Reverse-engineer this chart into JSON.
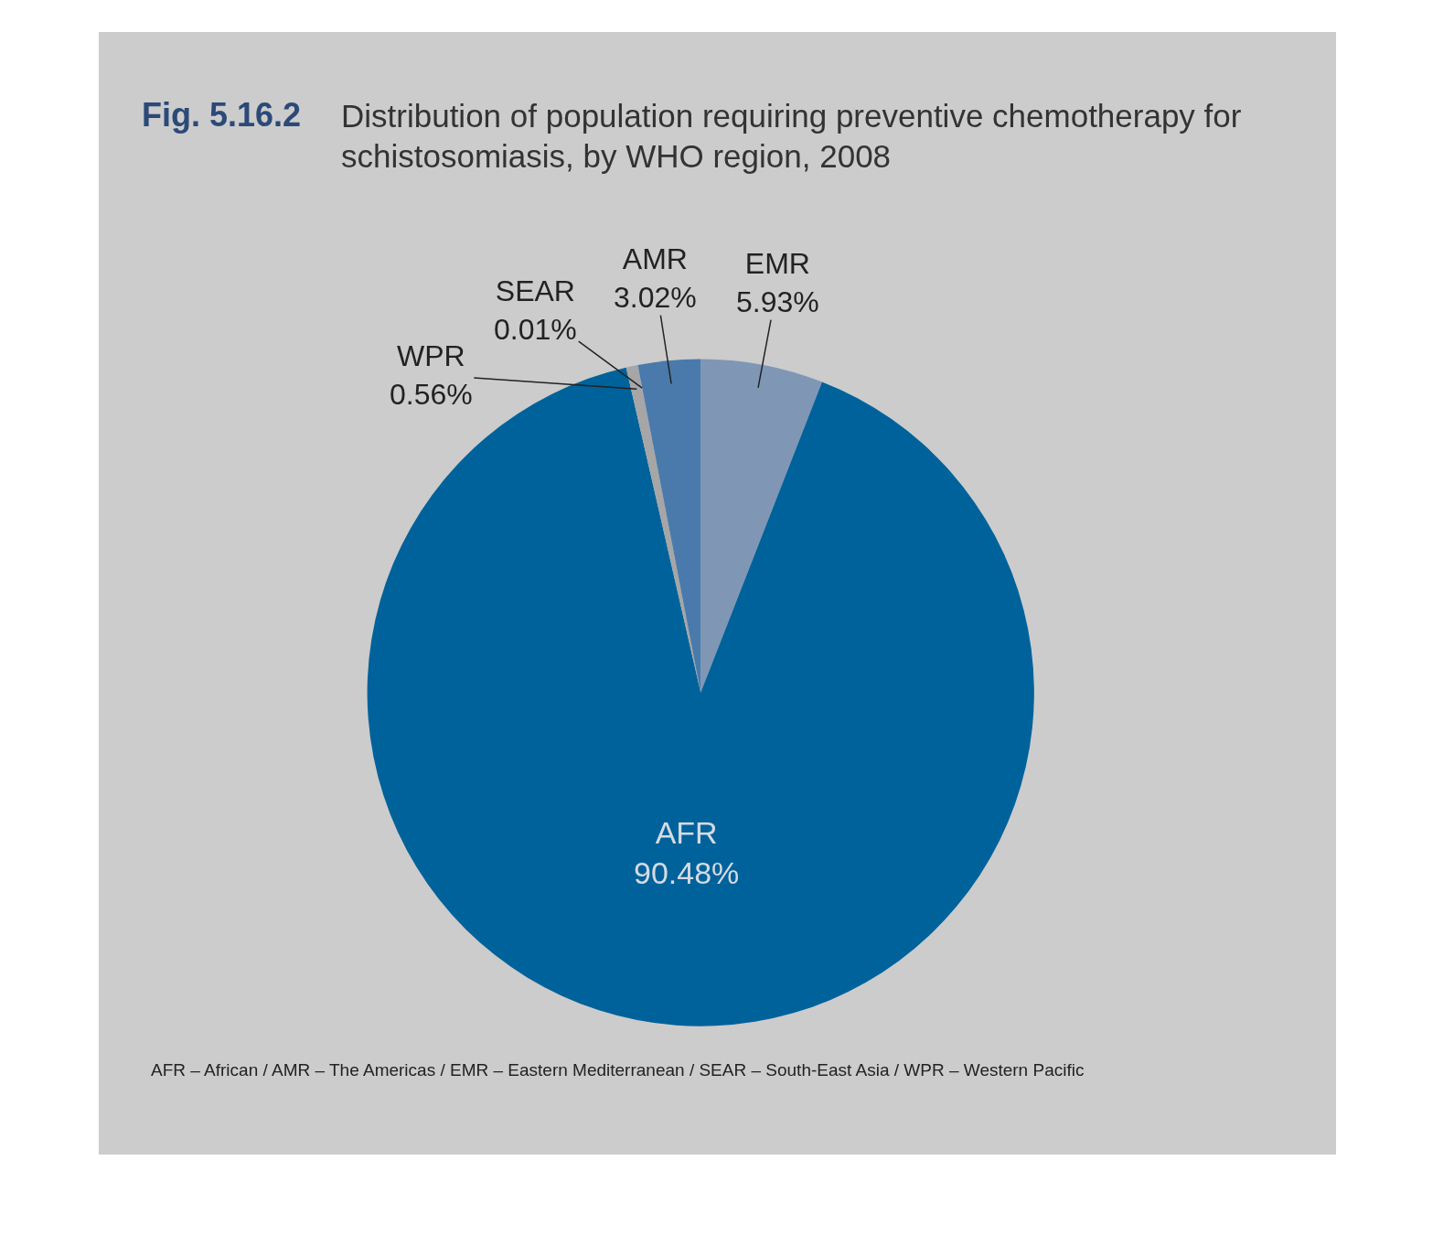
{
  "chart_data": {
    "type": "pie",
    "title": "Fig. 5.16.2",
    "subtitle": "Distribution of population requiring preventive chemotherapy for schistosomiasis, by WHO region, 2008",
    "categories": [
      "EMR",
      "AFR",
      "WPR",
      "SEAR",
      "AMR"
    ],
    "values": [
      5.93,
      90.48,
      0.56,
      0.01,
      3.02
    ],
    "colors": [
      "#7f97b5",
      "#00629b",
      "#a6a6a6",
      "#8a9cb0",
      "#4a7aab"
    ],
    "value_labels": [
      "5.93%",
      "90.48%",
      "0.56%",
      "0.01%",
      "3.02%"
    ],
    "legend": false,
    "annotations": [
      "AFR – African / AMR – The Americas / EMR – Eastern Mediterranean / SEAR – South-East Asia / WPR – Western Pacific"
    ]
  }
}
